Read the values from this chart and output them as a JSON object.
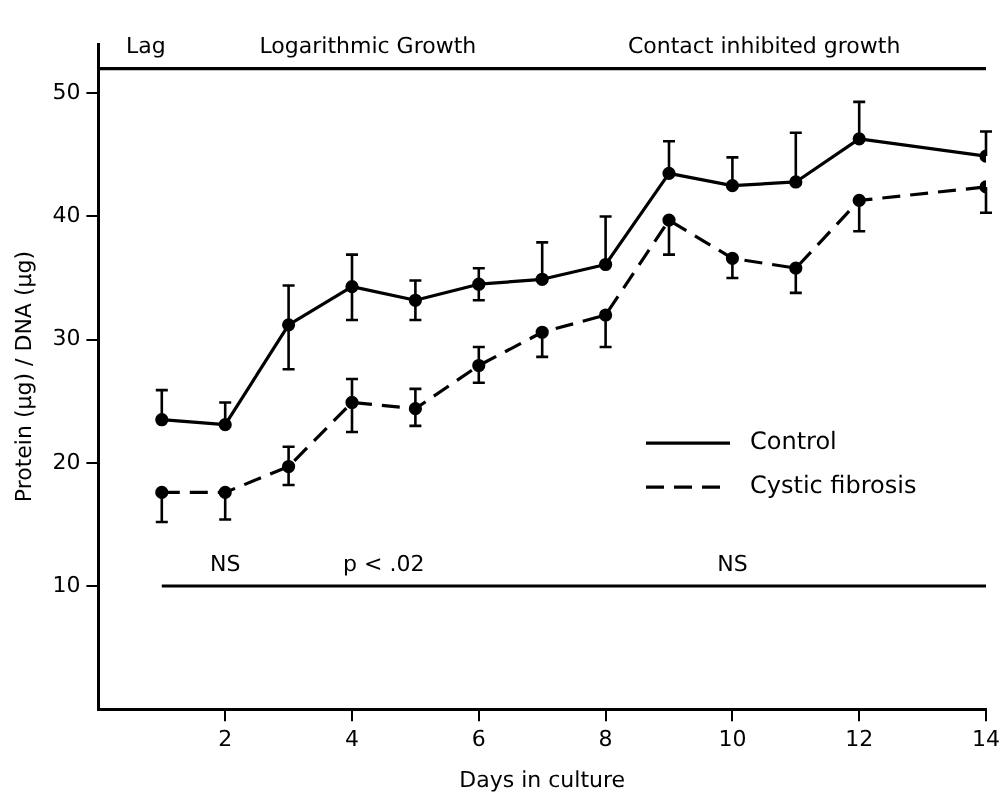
{
  "chart_data": {
    "type": "line",
    "xlabel": "Days in culture",
    "ylabel": "Protein (µg) / DNA (µg)",
    "xlim": [
      0,
      14
    ],
    "xticks": [
      2,
      4,
      6,
      8,
      10,
      12,
      14
    ],
    "ylim": [
      0,
      54
    ],
    "yticks": [
      10,
      20,
      30,
      40,
      50
    ],
    "grid": false,
    "legend": "right",
    "marker": "circle",
    "series": [
      {
        "name": "Control",
        "color": "#000000",
        "line_style": "solid",
        "x": [
          1,
          2,
          3,
          4,
          5,
          6,
          7,
          8,
          9,
          10,
          11,
          12,
          14
        ],
        "values": [
          23.5,
          23.1,
          31.2,
          34.3,
          33.2,
          34.5,
          34.9,
          36.1,
          43.5,
          42.5,
          42.8,
          46.3,
          44.9
        ],
        "errors": [
          [
            23.5,
            25.9
          ],
          [
            23.1,
            24.9
          ],
          [
            27.6,
            34.4
          ],
          [
            31.6,
            36.9
          ],
          [
            31.6,
            34.8
          ],
          [
            33.2,
            35.8
          ],
          [
            34.9,
            37.9
          ],
          [
            36.1,
            40
          ],
          [
            43.5,
            46.1
          ],
          [
            42.5,
            44.8
          ],
          [
            42.8,
            46.8
          ],
          [
            46.3,
            49.3
          ],
          [
            44.9,
            46.9
          ]
        ]
      },
      {
        "name": "Cystic fibrosis",
        "color": "#000000",
        "line_style": "dashed",
        "x": [
          1,
          2,
          3,
          4,
          5,
          6,
          7,
          8,
          9,
          10,
          11,
          12,
          14
        ],
        "values": [
          17.6,
          17.6,
          19.7,
          24.9,
          24.4,
          27.9,
          30.6,
          32,
          39.7,
          36.6,
          35.8,
          41.3,
          42.4
        ],
        "errors": [
          [
            15.2,
            17.6
          ],
          [
            15.4,
            17.6
          ],
          [
            18.2,
            21.3
          ],
          [
            22.5,
            26.8
          ],
          [
            23,
            26
          ],
          [
            26.5,
            29.4
          ],
          [
            28.6,
            30.6
          ],
          [
            29.4,
            32
          ],
          [
            36.9,
            39.7
          ],
          [
            35,
            36.6
          ],
          [
            33.8,
            35.8
          ],
          [
            38.8,
            41.3
          ],
          [
            40.3,
            42.4
          ]
        ]
      },
      {
        "type": "line",
        "color": "#000000",
        "line_style": "solid",
        "marker": "none",
        "x": [
          1,
          3,
          6,
          14
        ],
        "values": [
          10,
          10,
          10,
          10
        ]
      },
      {
        "type": "line",
        "color": "#000000",
        "line_style": "solid",
        "marker": "none",
        "x": [
          0,
          1.5,
          7,
          14
        ],
        "values": [
          52,
          52,
          52,
          52
        ]
      }
    ],
    "annotations": [
      {
        "text": "Lag",
        "x": 0.75,
        "y": 52
      },
      {
        "text": "Logarithmic Growth",
        "x": 4.25,
        "y": 52
      },
      {
        "text": "Contact inhibited growth",
        "x": 10.5,
        "y": 52
      },
      {
        "text": "NS",
        "x": 2,
        "y": 10
      },
      {
        "text": "p < .02",
        "x": 4.5,
        "y": 10
      },
      {
        "text": "NS",
        "x": 10,
        "y": 10
      }
    ]
  }
}
